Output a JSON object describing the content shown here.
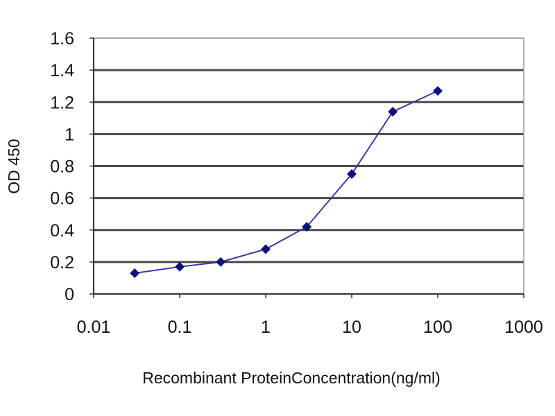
{
  "chart_data": {
    "type": "line",
    "title": "",
    "xlabel": "Recombinant ProteinConcentration(ng/ml)",
    "ylabel": "OD 450",
    "xscale": "log",
    "xlim": [
      0.01,
      1000
    ],
    "ylim": [
      0,
      1.6
    ],
    "xticks": [
      0.01,
      0.1,
      1,
      10,
      100,
      1000
    ],
    "xtick_labels": [
      "0.01",
      "0.1",
      "1",
      "10",
      "100",
      "1000"
    ],
    "yticks": [
      0,
      0.2,
      0.4,
      0.6,
      0.8,
      1,
      1.2,
      1.4,
      1.6
    ],
    "ytick_labels": [
      "0",
      "0.2",
      "0.4",
      "0.6",
      "0.8",
      "1",
      "1.2",
      "1.4",
      "1.6"
    ],
    "grid": "horizontal",
    "legend": "none",
    "series": [
      {
        "x": [
          0.03,
          0.1,
          0.3,
          1,
          3,
          10,
          30,
          100
        ],
        "y": [
          0.13,
          0.17,
          0.2,
          0.28,
          0.42,
          0.75,
          1.14,
          1.27
        ],
        "marker": "diamond",
        "color": "#1a1a80"
      }
    ],
    "colors": {
      "grid": "#4a4a4a",
      "line": "#3a3aa0",
      "marker": "#10107a"
    }
  }
}
